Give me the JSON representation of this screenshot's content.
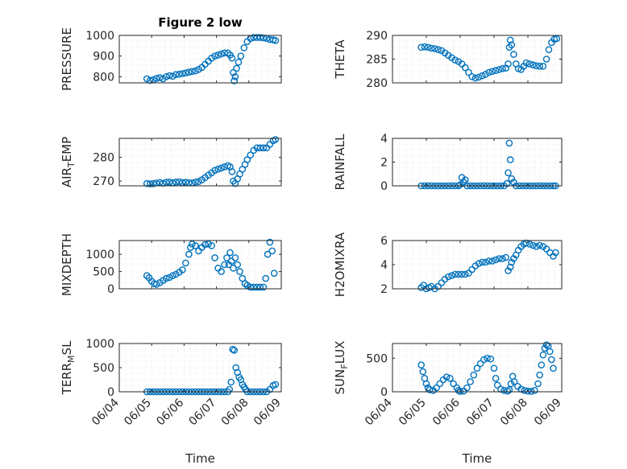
{
  "colors": {
    "marker": "#0072BD",
    "axis": "#262626",
    "grid": "#d9d9d9",
    "background": "#ffffff"
  },
  "chart_data": [
    {
      "type": "scatter",
      "title": "Figure 2 low",
      "ylabel": "PRESSURE",
      "xlabel": "",
      "xticks": [
        "06/04",
        "06/05",
        "06/06",
        "06/07",
        "06/08",
        "06/09"
      ],
      "xlim": [
        0,
        5
      ],
      "ylim": [
        770,
        1000
      ],
      "yticks": [
        800,
        900,
        1000
      ],
      "grid": true,
      "series": [
        {
          "x": [
            0.85,
            0.95,
            1.05,
            1.15,
            1.25,
            1.35,
            1.45,
            1.55,
            1.65,
            1.75,
            1.85,
            1.95,
            2.05,
            2.15,
            2.25,
            2.35,
            2.45,
            2.55,
            2.65,
            2.75,
            2.85,
            2.95,
            3.05,
            3.15,
            3.25,
            3.35,
            3.42,
            3.48,
            3.52,
            3.55,
            3.58,
            3.62,
            3.68,
            3.75,
            3.85,
            3.95,
            4.05,
            4.15,
            4.25,
            4.35,
            4.45,
            4.55,
            4.65,
            4.75,
            4.82
          ],
          "y": [
            790,
            782,
            785,
            792,
            795,
            790,
            800,
            805,
            802,
            810,
            812,
            815,
            818,
            822,
            825,
            828,
            835,
            845,
            860,
            875,
            890,
            900,
            905,
            910,
            915,
            915,
            905,
            890,
            820,
            780,
            800,
            840,
            870,
            900,
            940,
            970,
            985,
            990,
            990,
            990,
            988,
            985,
            980,
            978,
            975
          ]
        }
      ]
    },
    {
      "type": "scatter",
      "title": "",
      "ylabel": "THETA",
      "xlabel": "",
      "xticks": [
        "06/04",
        "06/05",
        "06/06",
        "06/07",
        "06/08",
        "06/09"
      ],
      "xlim": [
        0,
        5
      ],
      "ylim": [
        280,
        290
      ],
      "yticks": [
        280,
        285,
        290
      ],
      "grid": true,
      "series": [
        {
          "x": [
            0.85,
            0.95,
            1.05,
            1.15,
            1.25,
            1.35,
            1.45,
            1.55,
            1.65,
            1.75,
            1.85,
            1.95,
            2.05,
            2.15,
            2.25,
            2.35,
            2.45,
            2.55,
            2.65,
            2.75,
            2.85,
            2.95,
            3.05,
            3.15,
            3.25,
            3.35,
            3.42,
            3.45,
            3.48,
            3.52,
            3.58,
            3.65,
            3.72,
            3.8,
            3.88,
            3.95,
            4.05,
            4.15,
            4.25,
            4.35,
            4.45,
            4.55,
            4.62,
            4.7,
            4.78,
            4.85
          ],
          "y": [
            287.5,
            287.6,
            287.5,
            287.3,
            287.2,
            287.0,
            286.8,
            286.3,
            285.8,
            285.3,
            284.8,
            284.5,
            284.0,
            283.2,
            282.2,
            281.3,
            281.0,
            281.2,
            281.5,
            281.8,
            282.2,
            282.4,
            282.6,
            282.8,
            283.0,
            283.1,
            284.0,
            287.5,
            289.0,
            288.0,
            286.0,
            284.0,
            283.0,
            282.8,
            283.5,
            284.2,
            284.0,
            283.8,
            283.6,
            283.5,
            283.5,
            285.0,
            287.0,
            288.5,
            289.2,
            289.3
          ]
        }
      ]
    },
    {
      "type": "scatter",
      "title": "",
      "ylabel": "AIR_TEMP",
      "xlabel": "",
      "xticks": [
        "06/04",
        "06/05",
        "06/06",
        "06/07",
        "06/08",
        "06/09"
      ],
      "xlim": [
        0,
        5
      ],
      "ylim": [
        268,
        288
      ],
      "yticks": [
        270,
        280
      ],
      "grid": true,
      "series": [
        {
          "x": [
            0.85,
            0.95,
            1.05,
            1.15,
            1.25,
            1.35,
            1.45,
            1.55,
            1.65,
            1.75,
            1.85,
            1.95,
            2.05,
            2.15,
            2.25,
            2.35,
            2.45,
            2.55,
            2.65,
            2.75,
            2.85,
            2.95,
            3.05,
            3.15,
            3.25,
            3.35,
            3.42,
            3.48,
            3.52,
            3.58,
            3.65,
            3.72,
            3.8,
            3.88,
            3.95,
            4.05,
            4.15,
            4.25,
            4.35,
            4.45,
            4.55,
            4.65,
            4.75,
            4.82
          ],
          "y": [
            269.0,
            268.8,
            268.9,
            269.2,
            269.4,
            269.1,
            269.5,
            269.6,
            269.3,
            269.6,
            269.7,
            269.4,
            269.5,
            269.3,
            269.2,
            269.6,
            269.8,
            270.5,
            271.5,
            272.5,
            273.5,
            274.5,
            275.0,
            275.5,
            276.0,
            276.5,
            276.0,
            274.0,
            270.0,
            269.0,
            271.0,
            273.0,
            275.0,
            277.0,
            279.0,
            281.0,
            283.0,
            284.0,
            284.0,
            284.0,
            284.0,
            285.5,
            287.0,
            287.5
          ]
        }
      ]
    },
    {
      "type": "scatter",
      "title": "",
      "ylabel": "RAINFALL",
      "xlabel": "",
      "xticks": [
        "06/04",
        "06/05",
        "06/06",
        "06/07",
        "06/08",
        "06/09"
      ],
      "xlim": [
        0,
        5
      ],
      "ylim": [
        0,
        4
      ],
      "yticks": [
        0,
        2,
        4
      ],
      "grid": true,
      "series": [
        {
          "x": [
            0.85,
            0.95,
            1.05,
            1.15,
            1.25,
            1.35,
            1.45,
            1.55,
            1.65,
            1.75,
            1.85,
            1.95,
            2.0,
            2.05,
            2.1,
            2.15,
            2.2,
            2.3,
            2.4,
            2.5,
            2.6,
            2.7,
            2.8,
            2.9,
            3.0,
            3.1,
            3.2,
            3.3,
            3.38,
            3.42,
            3.45,
            3.48,
            3.52,
            3.58,
            3.65,
            3.75,
            3.85,
            3.95,
            4.05,
            4.15,
            4.25,
            4.35,
            4.45,
            4.55,
            4.65,
            4.75,
            4.82
          ],
          "y": [
            0,
            0,
            0,
            0,
            0,
            0,
            0,
            0,
            0,
            0,
            0,
            0,
            0.1,
            0.7,
            0.3,
            0.5,
            0,
            0,
            0,
            0,
            0,
            0,
            0,
            0,
            0,
            0,
            0,
            0,
            0.2,
            1.1,
            3.6,
            2.2,
            0.6,
            0.3,
            0,
            0,
            0,
            0,
            0,
            0,
            0,
            0,
            0,
            0,
            0,
            0,
            0
          ]
        }
      ]
    },
    {
      "type": "scatter",
      "title": "",
      "ylabel": "MIXDEPTH",
      "xlabel": "",
      "xticks": [
        "06/04",
        "06/05",
        "06/06",
        "06/07",
        "06/08",
        "06/09"
      ],
      "xlim": [
        0,
        5
      ],
      "ylim": [
        0,
        1400
      ],
      "yticks": [
        0,
        500,
        1000
      ],
      "grid": true,
      "series": [
        {
          "x": [
            0.85,
            0.92,
            1.0,
            1.08,
            1.15,
            1.25,
            1.35,
            1.45,
            1.55,
            1.65,
            1.75,
            1.85,
            1.95,
            2.05,
            2.15,
            2.2,
            2.25,
            2.35,
            2.45,
            2.55,
            2.65,
            2.75,
            2.85,
            2.95,
            3.05,
            3.15,
            3.25,
            3.32,
            3.38,
            3.42,
            3.46,
            3.52,
            3.58,
            3.65,
            3.72,
            3.8,
            3.88,
            3.95,
            4.05,
            4.15,
            4.25,
            4.35,
            4.45,
            4.52,
            4.58,
            4.65,
            4.72,
            4.78
          ],
          "y": [
            380,
            320,
            220,
            150,
            130,
            180,
            240,
            300,
            330,
            380,
            420,
            480,
            550,
            750,
            1000,
            1200,
            1300,
            1250,
            1100,
            1200,
            1280,
            1300,
            1250,
            900,
            600,
            500,
            700,
            900,
            700,
            1050,
            800,
            600,
            900,
            700,
            500,
            300,
            150,
            100,
            50,
            50,
            50,
            50,
            50,
            300,
            1000,
            1350,
            1100,
            450
          ]
        }
      ]
    },
    {
      "type": "scatter",
      "title": "",
      "ylabel": "H2OMIXRA",
      "xlabel": "",
      "xticks": [
        "06/04",
        "06/05",
        "06/06",
        "06/07",
        "06/08",
        "06/09"
      ],
      "xlim": [
        0,
        5
      ],
      "ylim": [
        2,
        6
      ],
      "yticks": [
        2,
        4,
        6
      ],
      "grid": true,
      "series": [
        {
          "x": [
            0.85,
            0.92,
            1.0,
            1.08,
            1.15,
            1.25,
            1.35,
            1.45,
            1.55,
            1.65,
            1.75,
            1.85,
            1.95,
            2.05,
            2.15,
            2.25,
            2.35,
            2.45,
            2.55,
            2.65,
            2.75,
            2.85,
            2.95,
            3.05,
            3.15,
            3.25,
            3.35,
            3.42,
            3.48,
            3.52,
            3.58,
            3.65,
            3.72,
            3.8,
            3.88,
            3.95,
            4.05,
            4.15,
            4.25,
            4.35,
            4.45,
            4.55,
            4.65,
            4.75,
            4.82
          ],
          "y": [
            2.1,
            2.3,
            2.0,
            2.1,
            2.2,
            2.0,
            2.2,
            2.5,
            2.8,
            3.0,
            3.1,
            3.2,
            3.2,
            3.2,
            3.2,
            3.3,
            3.6,
            3.9,
            4.1,
            4.2,
            4.2,
            4.3,
            4.3,
            4.4,
            4.5,
            4.5,
            4.6,
            3.5,
            3.8,
            4.2,
            4.5,
            4.8,
            5.2,
            5.5,
            5.7,
            5.8,
            5.7,
            5.6,
            5.5,
            5.6,
            5.5,
            5.3,
            5.0,
            4.7,
            5.0
          ]
        }
      ]
    },
    {
      "type": "scatter",
      "title": "",
      "ylabel": "TERR_MSL",
      "xlabel": "Time",
      "xticks": [
        "06/04",
        "06/05",
        "06/06",
        "06/07",
        "06/08",
        "06/09"
      ],
      "xlim": [
        0,
        5
      ],
      "ylim": [
        0,
        1000
      ],
      "yticks": [
        0,
        500,
        1000
      ],
      "grid": true,
      "series": [
        {
          "x": [
            0.85,
            0.95,
            1.05,
            1.15,
            1.25,
            1.35,
            1.45,
            1.55,
            1.65,
            1.75,
            1.85,
            1.95,
            2.05,
            2.15,
            2.25,
            2.35,
            2.45,
            2.55,
            2.65,
            2.75,
            2.85,
            2.95,
            3.05,
            3.15,
            3.25,
            3.35,
            3.4,
            3.45,
            3.5,
            3.55,
            3.6,
            3.65,
            3.7,
            3.75,
            3.8,
            3.85,
            3.9,
            3.95,
            4.05,
            4.15,
            4.25,
            4.35,
            4.45,
            4.55,
            4.65,
            4.75,
            4.82
          ],
          "y": [
            0,
            0,
            0,
            0,
            0,
            0,
            0,
            0,
            0,
            0,
            0,
            0,
            0,
            0,
            0,
            0,
            0,
            0,
            0,
            0,
            0,
            0,
            0,
            0,
            0,
            0,
            50,
            200,
            880,
            860,
            500,
            400,
            300,
            250,
            150,
            100,
            50,
            0,
            0,
            0,
            0,
            0,
            0,
            0,
            50,
            130,
            150
          ]
        }
      ]
    },
    {
      "type": "scatter",
      "title": "",
      "ylabel": "SUN_FLUX",
      "xlabel": "Time",
      "xticks": [
        "06/04",
        "06/05",
        "06/06",
        "06/07",
        "06/08",
        "06/09"
      ],
      "xlim": [
        0,
        5
      ],
      "ylim": [
        0,
        720
      ],
      "yticks": [
        0,
        500
      ],
      "grid": true,
      "series": [
        {
          "x": [
            0.85,
            0.9,
            0.95,
            1.0,
            1.05,
            1.1,
            1.2,
            1.3,
            1.4,
            1.5,
            1.6,
            1.7,
            1.8,
            1.9,
            1.95,
            2.0,
            2.1,
            2.2,
            2.3,
            2.4,
            2.5,
            2.6,
            2.7,
            2.8,
            2.9,
            3.0,
            3.05,
            3.1,
            3.2,
            3.3,
            3.4,
            3.45,
            3.5,
            3.55,
            3.6,
            3.7,
            3.8,
            3.9,
            4.0,
            4.1,
            4.2,
            4.3,
            4.35,
            4.4,
            4.45,
            4.5,
            4.55,
            4.6,
            4.65,
            4.7,
            4.75
          ],
          "y": [
            400,
            300,
            200,
            120,
            60,
            30,
            20,
            60,
            120,
            180,
            220,
            200,
            120,
            60,
            20,
            5,
            10,
            60,
            150,
            250,
            350,
            420,
            480,
            500,
            490,
            350,
            200,
            100,
            40,
            20,
            10,
            30,
            120,
            230,
            150,
            80,
            40,
            20,
            10,
            5,
            20,
            120,
            250,
            400,
            550,
            650,
            700,
            680,
            600,
            480,
            350
          ]
        }
      ]
    }
  ]
}
